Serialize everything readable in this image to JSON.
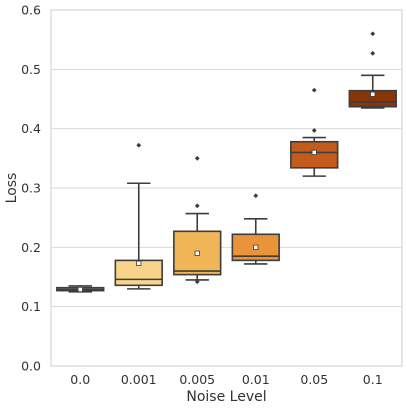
{
  "chart_data": {
    "type": "box",
    "title": "",
    "xlabel": "Noise Level",
    "ylabel": "Loss",
    "ylim": [
      0,
      0.6
    ],
    "yticks": [
      "0.0",
      "0.1",
      "0.2",
      "0.3",
      "0.4",
      "0.5",
      "0.6"
    ],
    "ytick_values": [
      0,
      0.1,
      0.2,
      0.3,
      0.4,
      0.5,
      0.6
    ],
    "grid": "horizontal",
    "categories": [
      "0.0",
      "0.001",
      "0.005",
      "0.01",
      "0.05",
      "0.1"
    ],
    "boxes": [
      {
        "category": "0.0",
        "whisker_low": 0.125,
        "q1": 0.127,
        "median": 0.129,
        "q3": 0.132,
        "whisker_high": 0.135,
        "mean": 0.129,
        "outliers": [],
        "color": "#fbe8b3"
      },
      {
        "category": "0.001",
        "whisker_low": 0.13,
        "q1": 0.136,
        "median": 0.146,
        "q3": 0.178,
        "whisker_high": 0.308,
        "mean": 0.173,
        "outliers": [
          0.372
        ],
        "color": "#f7d48a"
      },
      {
        "category": "0.005",
        "whisker_low": 0.145,
        "q1": 0.154,
        "median": 0.16,
        "q3": 0.227,
        "whisker_high": 0.257,
        "mean": 0.19,
        "outliers": [
          0.35,
          0.27,
          0.142
        ],
        "color": "#efb557"
      },
      {
        "category": "0.01",
        "whisker_low": 0.172,
        "q1": 0.178,
        "median": 0.185,
        "q3": 0.222,
        "whisker_high": 0.248,
        "mean": 0.2,
        "outliers": [
          0.287
        ],
        "color": "#e9933a"
      },
      {
        "category": "0.05",
        "whisker_low": 0.32,
        "q1": 0.334,
        "median": 0.36,
        "q3": 0.378,
        "whisker_high": 0.385,
        "mean": 0.36,
        "outliers": [
          0.465,
          0.397
        ],
        "color": "#c25b1c"
      },
      {
        "category": "0.1",
        "whisker_low": 0.435,
        "q1": 0.437,
        "median": 0.445,
        "q3": 0.464,
        "whisker_high": 0.49,
        "mean": 0.458,
        "outliers": [
          0.56,
          0.527
        ],
        "color": "#8a3409"
      }
    ]
  }
}
